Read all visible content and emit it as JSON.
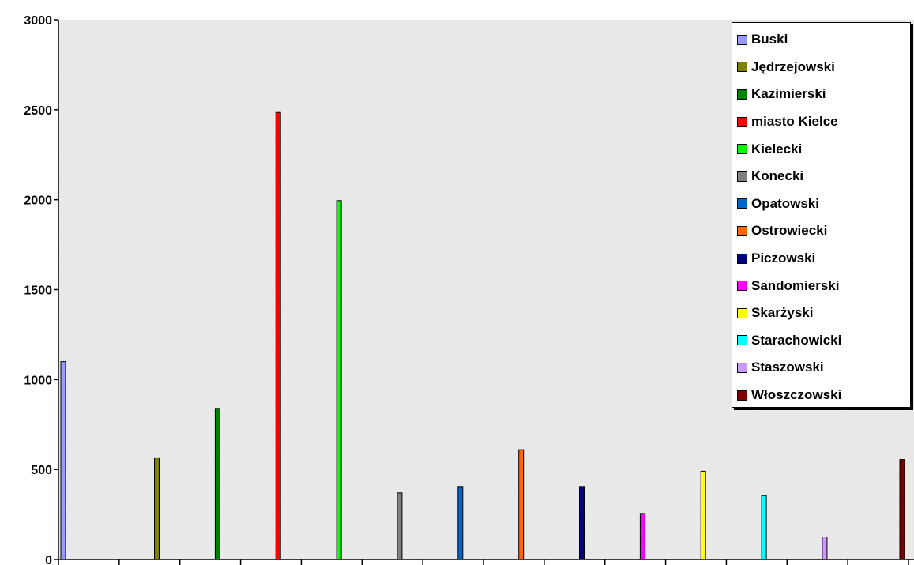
{
  "chart_data": {
    "type": "bar",
    "title": "",
    "xlabel": "",
    "ylabel": "",
    "ylim": [
      0,
      3000
    ],
    "yticks": [
      "0",
      "500",
      "1000",
      "1500",
      "2000",
      "2500",
      "3000"
    ],
    "grid": false,
    "legend_position": "top-right",
    "background": "light gray granite texture",
    "series": [
      {
        "name": "Buski",
        "value": 1100,
        "color": "#9999ff"
      },
      {
        "name": "Jędrzejowski",
        "value": 565,
        "color": "#808000"
      },
      {
        "name": "Kazimierski",
        "value": 840,
        "color": "#008000"
      },
      {
        "name": "miasto Kielce",
        "value": 2485,
        "color": "#ff0000"
      },
      {
        "name": "Kielecki",
        "value": 1995,
        "color": "#00ff00"
      },
      {
        "name": "Konecki",
        "value": 370,
        "color": "#808080"
      },
      {
        "name": "Opatowski",
        "value": 405,
        "color": "#0066cc"
      },
      {
        "name": "Ostrowiecki",
        "value": 610,
        "color": "#ff6600"
      },
      {
        "name": "Piczowski",
        "value": 405,
        "color": "#000080"
      },
      {
        "name": "Sandomierski",
        "value": 255,
        "color": "#ff00ff"
      },
      {
        "name": "Skarżyski",
        "value": 490,
        "color": "#ffff00"
      },
      {
        "name": "Starachowicki",
        "value": 355,
        "color": "#00ffff"
      },
      {
        "name": "Staszowski",
        "value": 125,
        "color": "#cc99ff"
      },
      {
        "name": "Włoszczowski",
        "value": 555,
        "color": "#800000"
      }
    ]
  }
}
